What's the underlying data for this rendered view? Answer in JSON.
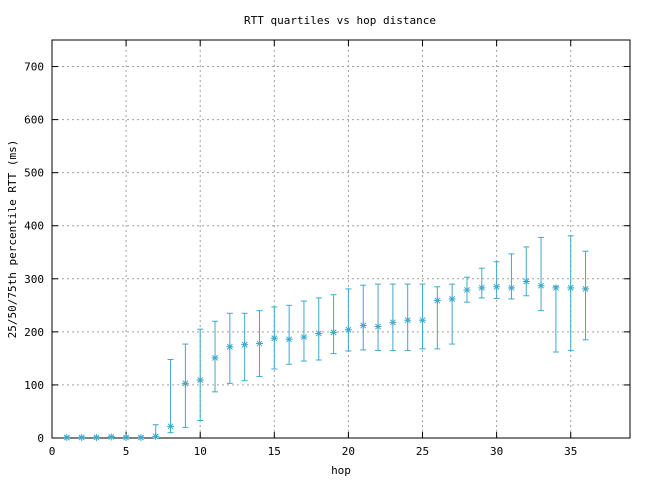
{
  "chart_data": {
    "type": "scatter",
    "title": "RTT quartiles vs hop distance",
    "xlabel": "hop",
    "ylabel": "25/50/75th percentile RTT (ms)",
    "xlim": [
      0,
      39
    ],
    "ylim": [
      0,
      750
    ],
    "xticks": [
      0,
      5,
      10,
      15,
      20,
      25,
      30,
      35
    ],
    "yticks": [
      0,
      100,
      200,
      300,
      400,
      500,
      600,
      700
    ],
    "grid": true,
    "legend": "none",
    "color": "#3fa9c9",
    "series": [
      {
        "points": [
          {
            "x": 1,
            "median": 1,
            "q25": 0,
            "q75": 2
          },
          {
            "x": 2,
            "median": 1,
            "q25": 0,
            "q75": 2
          },
          {
            "x": 3,
            "median": 1,
            "q25": 0,
            "q75": 2
          },
          {
            "x": 4,
            "median": 2,
            "q25": 0,
            "q75": 3
          },
          {
            "x": 5,
            "median": 1,
            "q25": 0,
            "q75": 2
          },
          {
            "x": 6,
            "median": 1,
            "q25": 0,
            "q75": 2
          },
          {
            "x": 7,
            "median": 3,
            "q25": 0,
            "q75": 25
          },
          {
            "x": 8,
            "median": 22,
            "q25": 10,
            "q75": 148
          },
          {
            "x": 9,
            "median": 103,
            "q25": 20,
            "q75": 177
          },
          {
            "x": 10,
            "median": 109,
            "q25": 33,
            "q75": 205
          },
          {
            "x": 11,
            "median": 151,
            "q25": 87,
            "q75": 220
          },
          {
            "x": 12,
            "median": 172,
            "q25": 103,
            "q75": 235
          },
          {
            "x": 13,
            "median": 176,
            "q25": 108,
            "q75": 235
          },
          {
            "x": 14,
            "median": 178,
            "q25": 116,
            "q75": 240
          },
          {
            "x": 15,
            "median": 188,
            "q25": 130,
            "q75": 247
          },
          {
            "x": 16,
            "median": 186,
            "q25": 139,
            "q75": 250
          },
          {
            "x": 17,
            "median": 190,
            "q25": 145,
            "q75": 258
          },
          {
            "x": 18,
            "median": 197,
            "q25": 147,
            "q75": 264
          },
          {
            "x": 19,
            "median": 199,
            "q25": 159,
            "q75": 270
          },
          {
            "x": 20,
            "median": 204,
            "q25": 164,
            "q75": 281
          },
          {
            "x": 21,
            "median": 212,
            "q25": 166,
            "q75": 288
          },
          {
            "x": 22,
            "median": 210,
            "q25": 165,
            "q75": 290
          },
          {
            "x": 23,
            "median": 218,
            "q25": 165,
            "q75": 290
          },
          {
            "x": 24,
            "median": 222,
            "q25": 165,
            "q75": 290
          },
          {
            "x": 25,
            "median": 222,
            "q25": 168,
            "q75": 290
          },
          {
            "x": 26,
            "median": 259,
            "q25": 168,
            "q75": 285
          },
          {
            "x": 27,
            "median": 262,
            "q25": 177,
            "q75": 290
          },
          {
            "x": 28,
            "median": 279,
            "q25": 256,
            "q75": 303
          },
          {
            "x": 29,
            "median": 283,
            "q25": 264,
            "q75": 320
          },
          {
            "x": 30,
            "median": 285,
            "q25": 263,
            "q75": 332
          },
          {
            "x": 31,
            "median": 283,
            "q25": 262,
            "q75": 347
          },
          {
            "x": 32,
            "median": 295,
            "q25": 268,
            "q75": 360
          },
          {
            "x": 33,
            "median": 287,
            "q25": 240,
            "q75": 378
          },
          {
            "x": 34,
            "median": 283,
            "q25": 162,
            "q75": 286
          },
          {
            "x": 35,
            "median": 283,
            "q25": 165,
            "q75": 381
          },
          {
            "x": 36,
            "median": 281,
            "q25": 185,
            "q75": 352
          }
        ]
      }
    ]
  }
}
